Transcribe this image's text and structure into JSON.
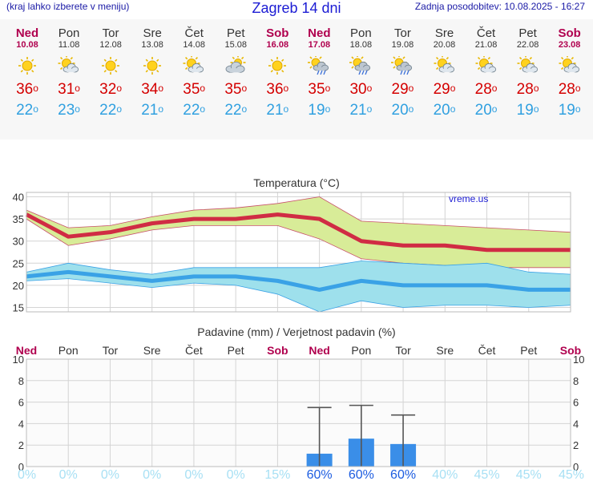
{
  "header": {
    "left_text": "(kraj lahko izberete v meniju)",
    "title": "Zagreb 14 dni",
    "right_text": "Zadnja posodobitev: 10.08.2025 - 16:27"
  },
  "days": [
    {
      "name": "Ned",
      "date": "10.08",
      "weekend": true,
      "icon": "sun-icon",
      "max": "36",
      "min": "22"
    },
    {
      "name": "Pon",
      "date": "11.08",
      "weekend": false,
      "icon": "sun-cloud-icon",
      "max": "31",
      "min": "23"
    },
    {
      "name": "Tor",
      "date": "12.08",
      "weekend": false,
      "icon": "sun-icon",
      "max": "32",
      "min": "22"
    },
    {
      "name": "Sre",
      "date": "13.08",
      "weekend": false,
      "icon": "sun-icon",
      "max": "34",
      "min": "21"
    },
    {
      "name": "Čet",
      "date": "14.08",
      "weekend": false,
      "icon": "sun-cloud-icon",
      "max": "35",
      "min": "22"
    },
    {
      "name": "Pet",
      "date": "15.08",
      "weekend": false,
      "icon": "cloud-sun-icon",
      "max": "35",
      "min": "22"
    },
    {
      "name": "Sob",
      "date": "16.08",
      "weekend": true,
      "icon": "sun-icon",
      "max": "36",
      "min": "21"
    },
    {
      "name": "Ned",
      "date": "17.08",
      "weekend": true,
      "icon": "sun-rain-icon",
      "max": "35",
      "min": "19"
    },
    {
      "name": "Pon",
      "date": "18.08",
      "weekend": false,
      "icon": "sun-rain-icon",
      "max": "30",
      "min": "21"
    },
    {
      "name": "Tor",
      "date": "19.08",
      "weekend": false,
      "icon": "sun-rain-icon",
      "max": "29",
      "min": "20"
    },
    {
      "name": "Sre",
      "date": "20.08",
      "weekend": false,
      "icon": "sun-cloud-icon",
      "max": "29",
      "min": "20"
    },
    {
      "name": "Čet",
      "date": "21.08",
      "weekend": false,
      "icon": "sun-cloud-icon",
      "max": "28",
      "min": "20"
    },
    {
      "name": "Pet",
      "date": "22.08",
      "weekend": false,
      "icon": "sun-cloud-icon",
      "max": "28",
      "min": "19"
    },
    {
      "name": "Sob",
      "date": "23.08",
      "weekend": true,
      "icon": "sun-cloud-icon",
      "max": "28",
      "min": "19"
    }
  ],
  "degree_symbol": "o",
  "colors": {
    "weekend": "#b0004e",
    "max_line": "#d02c44",
    "max_band": "#d8ec98",
    "min_line": "#3aa2e6",
    "min_band": "#9ee0ec",
    "rain_bar": "#3a8ee8",
    "prob_low": "#a8e0f4",
    "prob_high": "#1c5ce0"
  },
  "chart_data": [
    {
      "type": "line",
      "title": "Temperatura (°C)",
      "watermark": "vreme.us",
      "categories": [
        "Ned",
        "Pon",
        "Tor",
        "Sre",
        "Čet",
        "Pet",
        "Sob",
        "Ned",
        "Pon",
        "Tor",
        "Sre",
        "Čet",
        "Pet",
        "Sob"
      ],
      "ylim": [
        14,
        41
      ],
      "yticks": [
        15,
        20,
        25,
        30,
        35,
        40
      ],
      "grid": true,
      "series": [
        {
          "role": "max",
          "values": [
            36,
            31,
            32,
            34,
            35,
            35,
            36,
            35,
            30,
            29,
            29,
            28,
            28,
            28
          ],
          "band_high": [
            37,
            33,
            33.5,
            35.5,
            37,
            37.5,
            38.5,
            40,
            34.5,
            34,
            33.5,
            33,
            32.5,
            32
          ],
          "band_low": [
            35,
            29,
            30.5,
            32.5,
            33.5,
            33.5,
            33.5,
            30.5,
            26,
            25,
            24.5,
            24,
            24,
            24
          ]
        },
        {
          "role": "min",
          "values": [
            22,
            23,
            22,
            21,
            22,
            22,
            21,
            19,
            21,
            20,
            20,
            20,
            19,
            19
          ],
          "band_high": [
            23,
            25,
            23.5,
            22.5,
            24,
            24,
            24,
            24,
            25.5,
            25,
            24.5,
            25,
            23,
            22.5
          ],
          "band_low": [
            21,
            21.5,
            20.5,
            19.5,
            20.5,
            20,
            18,
            14,
            16.5,
            15,
            15.5,
            15.5,
            15,
            15.5
          ]
        }
      ]
    },
    {
      "type": "bar",
      "title": "Padavine (mm) / Verjetnost padavin (%)",
      "categories": [
        "Ned",
        "Pon",
        "Tor",
        "Sre",
        "Čet",
        "Pet",
        "Sob",
        "Ned",
        "Pon",
        "Tor",
        "Sre",
        "Čet",
        "Pet",
        "Sob"
      ],
      "values": [
        0,
        0,
        0,
        0,
        0,
        0,
        0,
        1.2,
        2.6,
        2.1,
        0,
        0,
        0,
        0
      ],
      "error_high": [
        null,
        null,
        null,
        null,
        null,
        null,
        null,
        5.5,
        5.7,
        4.8,
        null,
        null,
        null,
        null
      ],
      "probability": [
        "0%",
        "0%",
        "0%",
        "0%",
        "0%",
        "0%",
        "15%",
        "60%",
        "60%",
        "60%",
        "40%",
        "45%",
        "45%",
        "45%"
      ],
      "ylim": [
        0,
        10
      ],
      "yticks": [
        0,
        2,
        4,
        6,
        8,
        10
      ],
      "grid": true
    }
  ]
}
